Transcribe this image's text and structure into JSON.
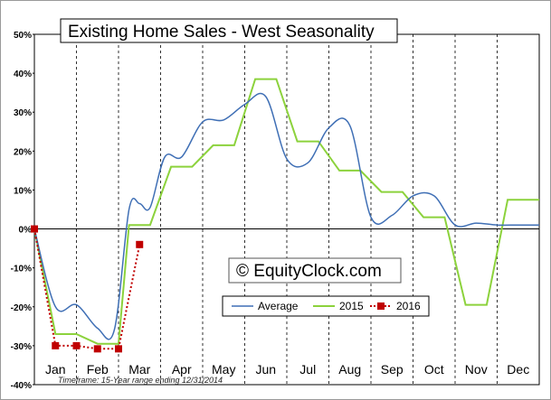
{
  "chart_data": {
    "type": "line",
    "title": "Existing Home Sales - West Seasonality",
    "watermark": "© EquityClock.com",
    "footnote": "Timeframe: 15-Year range ending 12/31/2014",
    "ylim": [
      -40,
      50
    ],
    "xlim": [
      0,
      12
    ],
    "y_ticks": [
      50,
      40,
      30,
      20,
      10,
      0,
      -10,
      -20,
      -30,
      -40
    ],
    "y_tick_labels": [
      "50%",
      "40%",
      "30%",
      "20%",
      "10%",
      "0%",
      "-10%",
      "-20%",
      "-30%",
      "-40%"
    ],
    "months": [
      "Jan",
      "Feb",
      "Mar",
      "Apr",
      "May",
      "Jun",
      "Jul",
      "Aug",
      "Sep",
      "Oct",
      "Nov",
      "Dec"
    ],
    "grid": "vertical-dashed",
    "legend_position": "bottom-center",
    "series": [
      {
        "name": "Average",
        "color": "#3f6fb5",
        "style": "smooth",
        "points": [
          [
            0,
            0
          ],
          [
            0.5,
            -20
          ],
          [
            1.0,
            -19.5
          ],
          [
            1.5,
            -25.5
          ],
          [
            1.9,
            -26
          ],
          [
            2.25,
            5
          ],
          [
            2.5,
            6.5
          ],
          [
            2.75,
            5.5
          ],
          [
            3.1,
            18.5
          ],
          [
            3.5,
            18.5
          ],
          [
            4.0,
            27.5
          ],
          [
            4.5,
            28
          ],
          [
            5.0,
            32
          ],
          [
            5.5,
            34
          ],
          [
            6.0,
            18
          ],
          [
            6.5,
            17
          ],
          [
            7.0,
            26
          ],
          [
            7.5,
            26.5
          ],
          [
            8.0,
            3
          ],
          [
            8.5,
            3.5
          ],
          [
            9.0,
            8.5
          ],
          [
            9.5,
            8.5
          ],
          [
            10.0,
            1
          ],
          [
            10.5,
            1.5
          ],
          [
            11.0,
            1
          ],
          [
            11.5,
            1
          ],
          [
            12.0,
            1
          ]
        ]
      },
      {
        "name": "2015",
        "color": "#8cd23c",
        "style": "linear",
        "points": [
          [
            0,
            0
          ],
          [
            0.5,
            -27
          ],
          [
            1.0,
            -27
          ],
          [
            1.5,
            -29.5
          ],
          [
            2.0,
            -29.5
          ],
          [
            2.25,
            1
          ],
          [
            2.75,
            1
          ],
          [
            3.25,
            16
          ],
          [
            3.75,
            16
          ],
          [
            4.25,
            21.5
          ],
          [
            4.75,
            21.5
          ],
          [
            5.25,
            38.5
          ],
          [
            5.75,
            38.5
          ],
          [
            6.25,
            22.5
          ],
          [
            6.75,
            22.5
          ],
          [
            7.25,
            15
          ],
          [
            7.75,
            15
          ],
          [
            8.25,
            9.5
          ],
          [
            8.75,
            9.5
          ],
          [
            9.25,
            3
          ],
          [
            9.75,
            3
          ],
          [
            10.25,
            -19.5
          ],
          [
            10.75,
            -19.5
          ],
          [
            11.25,
            7.5
          ],
          [
            12.0,
            7.5
          ]
        ]
      },
      {
        "name": "2016",
        "color": "#c00000",
        "style": "dotted-markers",
        "points": [
          [
            0,
            0
          ],
          [
            0.5,
            -30
          ],
          [
            1.0,
            -30
          ],
          [
            1.5,
            -30.8
          ],
          [
            2.0,
            -30.8
          ],
          [
            2.5,
            -4
          ]
        ]
      }
    ]
  }
}
